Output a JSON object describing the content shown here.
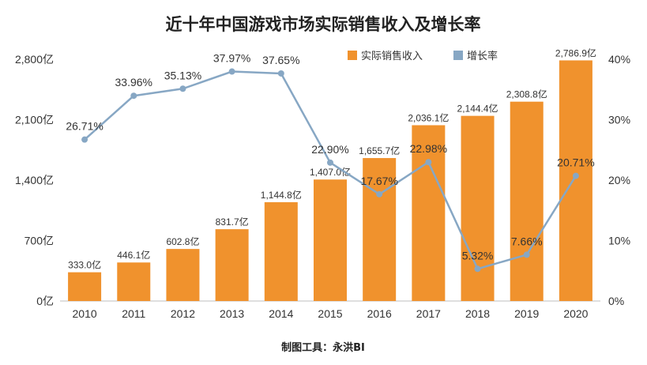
{
  "chart_data": {
    "type": "bar+line",
    "title": "近十年中国游戏市场实际销售收入及增长率",
    "categories": [
      "2010",
      "2011",
      "2012",
      "2013",
      "2014",
      "2015",
      "2016",
      "2017",
      "2018",
      "2019",
      "2020"
    ],
    "series": [
      {
        "name": "实际销售收入",
        "kind": "bar",
        "axis": "left",
        "values": [
          333.0,
          446.1,
          602.8,
          831.7,
          1144.8,
          1407.0,
          1655.7,
          2036.1,
          2144.4,
          2308.8,
          2786.9
        ],
        "labels": [
          "333.0亿",
          "446.1亿",
          "602.8亿",
          "831.7亿",
          "1,144.8亿",
          "1,407.0亿",
          "1,655.7亿",
          "2,036.1亿",
          "2,144.4亿",
          "2,308.8亿",
          "2,786.9亿"
        ]
      },
      {
        "name": "增长率",
        "kind": "line",
        "axis": "right",
        "values": [
          26.71,
          33.96,
          35.13,
          37.97,
          37.65,
          22.9,
          17.67,
          22.98,
          5.32,
          7.66,
          20.71
        ],
        "labels": [
          "26.71%",
          "33.96%",
          "35.13%",
          "37.97%",
          "37.65%",
          "22.90%",
          "17.67%",
          "22.98%",
          "5.32%",
          "7.66%",
          "20.71%"
        ]
      }
    ],
    "left_axis": {
      "min": 0,
      "max": 2800,
      "ticks": [
        0,
        700,
        1400,
        2100,
        2800
      ],
      "tick_labels": [
        "0亿",
        "700亿",
        "1,400亿",
        "2,100亿",
        "2,800亿"
      ]
    },
    "right_axis": {
      "min": 0,
      "max": 40,
      "ticks": [
        0,
        10,
        20,
        30,
        40
      ],
      "tick_labels": [
        "0%",
        "10%",
        "20%",
        "30%",
        "40%"
      ]
    },
    "legend_position": "top-right",
    "grid": false
  },
  "colors": {
    "bar": "#F0922D",
    "line": "#87A7C4",
    "axis": "#BFBFBF"
  },
  "source_text": "制图工具：永洪BI"
}
